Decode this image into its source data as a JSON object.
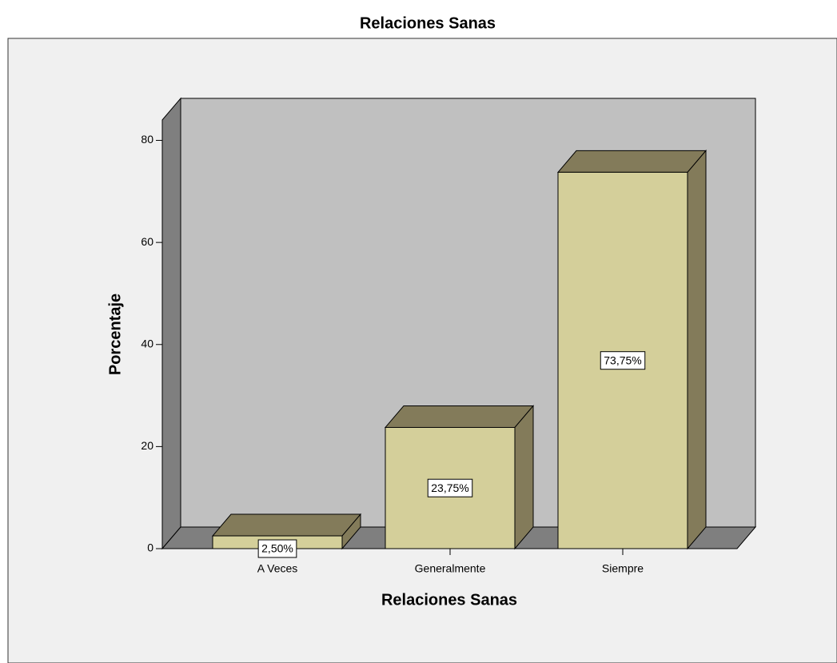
{
  "chart_data": {
    "type": "bar",
    "title": "Relaciones Sanas",
    "x_label": "Relaciones Sanas",
    "y_label": "Porcentaje",
    "categories": [
      "A Veces",
      "Generalmente",
      "Siempre"
    ],
    "values": [
      2.5,
      23.75,
      73.75
    ],
    "value_labels": [
      "2,50%",
      "23,75%",
      "73,75%"
    ],
    "color": "#d4cf9a",
    "ylim": [
      0,
      84
    ],
    "yticks": [
      0,
      20,
      40,
      60,
      80
    ]
  }
}
